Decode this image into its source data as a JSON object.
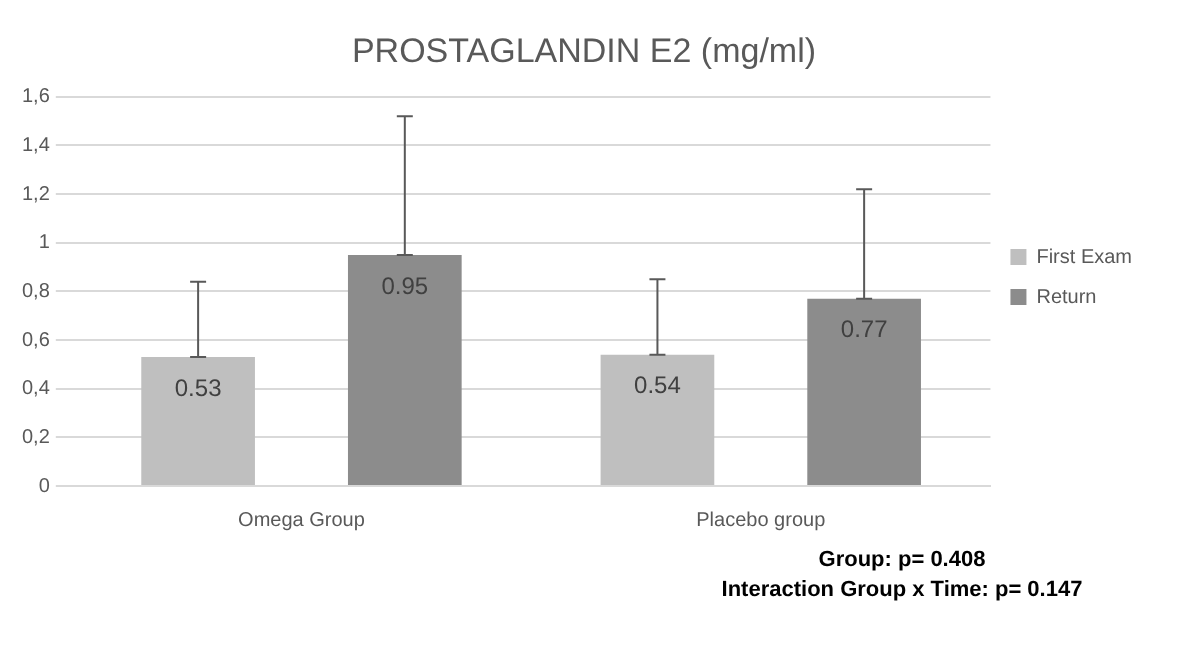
{
  "chart_data": {
    "type": "bar",
    "title": "PROSTAGLANDIN E2 (mg/ml)",
    "categories": [
      "Omega Group",
      "Placebo group"
    ],
    "series": [
      {
        "name": "First Exam",
        "color": "#bfbfbf",
        "values": [
          0.53,
          0.54
        ],
        "errors": [
          [
            0.53,
            0.84
          ],
          [
            0.54,
            0.85
          ]
        ]
      },
      {
        "name": "Return",
        "color": "#8c8c8c",
        "values": [
          0.95,
          0.77
        ],
        "errors": [
          [
            0.95,
            1.52
          ],
          [
            0.77,
            1.22
          ]
        ]
      }
    ],
    "ylim": [
      0,
      1.6
    ],
    "yticks": [
      {
        "value": 0,
        "label": "0"
      },
      {
        "value": 0.2,
        "label": "0,2"
      },
      {
        "value": 0.4,
        "label": "0,4"
      },
      {
        "value": 0.6,
        "label": "0,6"
      },
      {
        "value": 0.8,
        "label": "0,8"
      },
      {
        "value": 1,
        "label": "1"
      },
      {
        "value": 1.2,
        "label": "1,2"
      },
      {
        "value": 1.4,
        "label": "1,4"
      },
      {
        "value": 1.6,
        "label": "1,6"
      }
    ],
    "grid": "y",
    "legend": "right",
    "data_labels": true,
    "annotations": [
      "Group: p= 0.408",
      "Interaction Group x Time: p= 0.147"
    ]
  }
}
